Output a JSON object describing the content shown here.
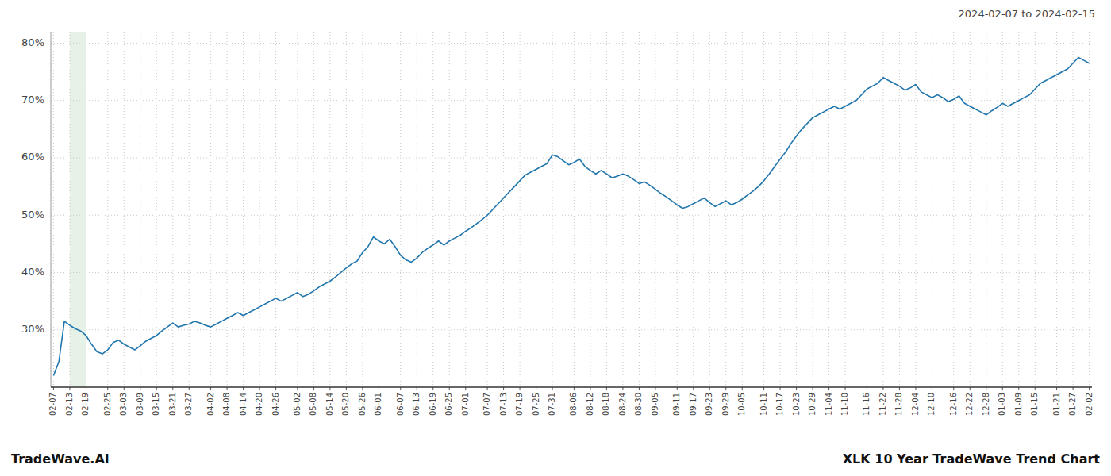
{
  "chart_data": {
    "type": "line",
    "title": "XLK 10 Year TradeWave Trend Chart",
    "subtitle": "2024-02-07 to 2024-02-15",
    "annotations": [
      "TradeWave.AI"
    ],
    "color": "#2176ae",
    "grid": true,
    "ylim": [
      20,
      82
    ],
    "yticks": [
      {
        "value": 30,
        "label": "30%"
      },
      {
        "value": 40,
        "label": "40%"
      },
      {
        "value": 50,
        "label": "50%"
      },
      {
        "value": 60,
        "label": "60%"
      },
      {
        "value": 70,
        "label": "70%"
      },
      {
        "value": 80,
        "label": "80%"
      }
    ],
    "shaded_range": {
      "start": "02-13",
      "end": "02-19",
      "color": "#d6ead7"
    },
    "categories": [
      "02-07",
      null,
      null,
      "02-13",
      null,
      null,
      "02-19",
      null,
      null,
      null,
      "02-25",
      null,
      null,
      "03-03",
      null,
      null,
      "03-09",
      null,
      null,
      "03-15",
      null,
      null,
      "03-21",
      null,
      null,
      "03-27",
      null,
      null,
      null,
      "04-02",
      null,
      null,
      "04-08",
      null,
      null,
      "04-14",
      null,
      null,
      "04-20",
      null,
      null,
      "04-26",
      null,
      null,
      null,
      "05-02",
      null,
      null,
      "05-08",
      null,
      null,
      "05-14",
      null,
      null,
      "05-20",
      null,
      null,
      "05-26",
      null,
      null,
      "06-01",
      null,
      null,
      null,
      "06-07",
      null,
      null,
      "06-13",
      null,
      null,
      "06-19",
      null,
      null,
      "06-25",
      null,
      null,
      "07-01",
      null,
      null,
      null,
      "07-07",
      null,
      null,
      "07-13",
      null,
      null,
      "07-19",
      null,
      null,
      "07-25",
      null,
      null,
      "07-31",
      null,
      null,
      null,
      "08-06",
      null,
      null,
      "08-12",
      null,
      null,
      "08-18",
      null,
      null,
      "08-24",
      null,
      null,
      "08-30",
      null,
      null,
      "09-05",
      null,
      null,
      null,
      "09-11",
      null,
      null,
      "09-17",
      null,
      null,
      "09-23",
      null,
      null,
      "09-29",
      null,
      null,
      "10-05",
      null,
      null,
      null,
      "10-11",
      null,
      null,
      "10-17",
      null,
      null,
      "10-23",
      null,
      null,
      "10-29",
      null,
      null,
      "11-04",
      null,
      null,
      "11-10",
      null,
      null,
      null,
      "11-16",
      null,
      null,
      "11-22",
      null,
      null,
      "11-28",
      null,
      null,
      "12-04",
      null,
      null,
      "12-10",
      null,
      null,
      null,
      "12-16",
      null,
      null,
      "12-22",
      null,
      null,
      "12-28",
      null,
      null,
      "01-03",
      null,
      null,
      "01-09",
      null,
      null,
      "01-15",
      null,
      null,
      null,
      "01-21",
      null,
      null,
      "01-27",
      null,
      null,
      "02-02"
    ],
    "values": [
      22.0,
      24.5,
      31.5,
      30.8,
      30.2,
      29.8,
      29.0,
      27.5,
      26.2,
      25.8,
      26.5,
      27.8,
      28.2,
      27.5,
      27.0,
      26.5,
      27.2,
      28.0,
      28.5,
      29.0,
      29.8,
      30.5,
      31.2,
      30.5,
      30.8,
      31.0,
      31.5,
      31.2,
      30.8,
      30.5,
      31.0,
      31.5,
      32.0,
      32.5,
      33.0,
      32.5,
      33.0,
      33.5,
      34.0,
      34.5,
      35.0,
      35.5,
      35.0,
      35.5,
      36.0,
      36.5,
      35.8,
      36.2,
      36.8,
      37.5,
      38.0,
      38.5,
      39.2,
      40.0,
      40.8,
      41.5,
      42.0,
      43.5,
      44.5,
      46.2,
      45.5,
      45.0,
      45.8,
      44.5,
      43.0,
      42.2,
      41.8,
      42.5,
      43.5,
      44.2,
      44.8,
      45.5,
      44.8,
      45.5,
      46.0,
      46.5,
      47.2,
      47.8,
      48.5,
      49.2,
      50.0,
      51.0,
      52.0,
      53.0,
      54.0,
      55.0,
      56.0,
      57.0,
      57.5,
      58.0,
      58.5,
      59.0,
      60.5,
      60.2,
      59.5,
      58.8,
      59.2,
      59.8,
      58.5,
      57.8,
      57.2,
      57.8,
      57.2,
      56.5,
      56.8,
      57.2,
      56.8,
      56.2,
      55.5,
      55.8,
      55.2,
      54.5,
      53.8,
      53.2,
      52.5,
      51.8,
      51.2,
      51.5,
      52.0,
      52.5,
      53.0,
      52.2,
      51.5,
      52.0,
      52.5,
      51.8,
      52.2,
      52.8,
      53.5,
      54.2,
      55.0,
      56.0,
      57.2,
      58.5,
      59.8,
      61.0,
      62.5,
      63.8,
      65.0,
      66.0,
      67.0,
      67.5,
      68.0,
      68.5,
      69.0,
      68.5,
      69.0,
      69.5,
      70.0,
      71.0,
      72.0,
      72.5,
      73.0,
      74.0,
      73.5,
      73.0,
      72.5,
      71.8,
      72.2,
      72.8,
      71.5,
      71.0,
      70.5,
      71.0,
      70.5,
      69.8,
      70.2,
      70.8,
      69.5,
      69.0,
      68.5,
      68.0,
      67.5,
      68.2,
      68.8,
      69.5,
      69.0,
      69.5,
      70.0,
      70.5,
      71.0,
      72.0,
      73.0,
      73.5,
      74.0,
      74.5,
      75.0,
      75.5,
      76.5,
      77.5,
      77.0,
      76.5
    ]
  }
}
